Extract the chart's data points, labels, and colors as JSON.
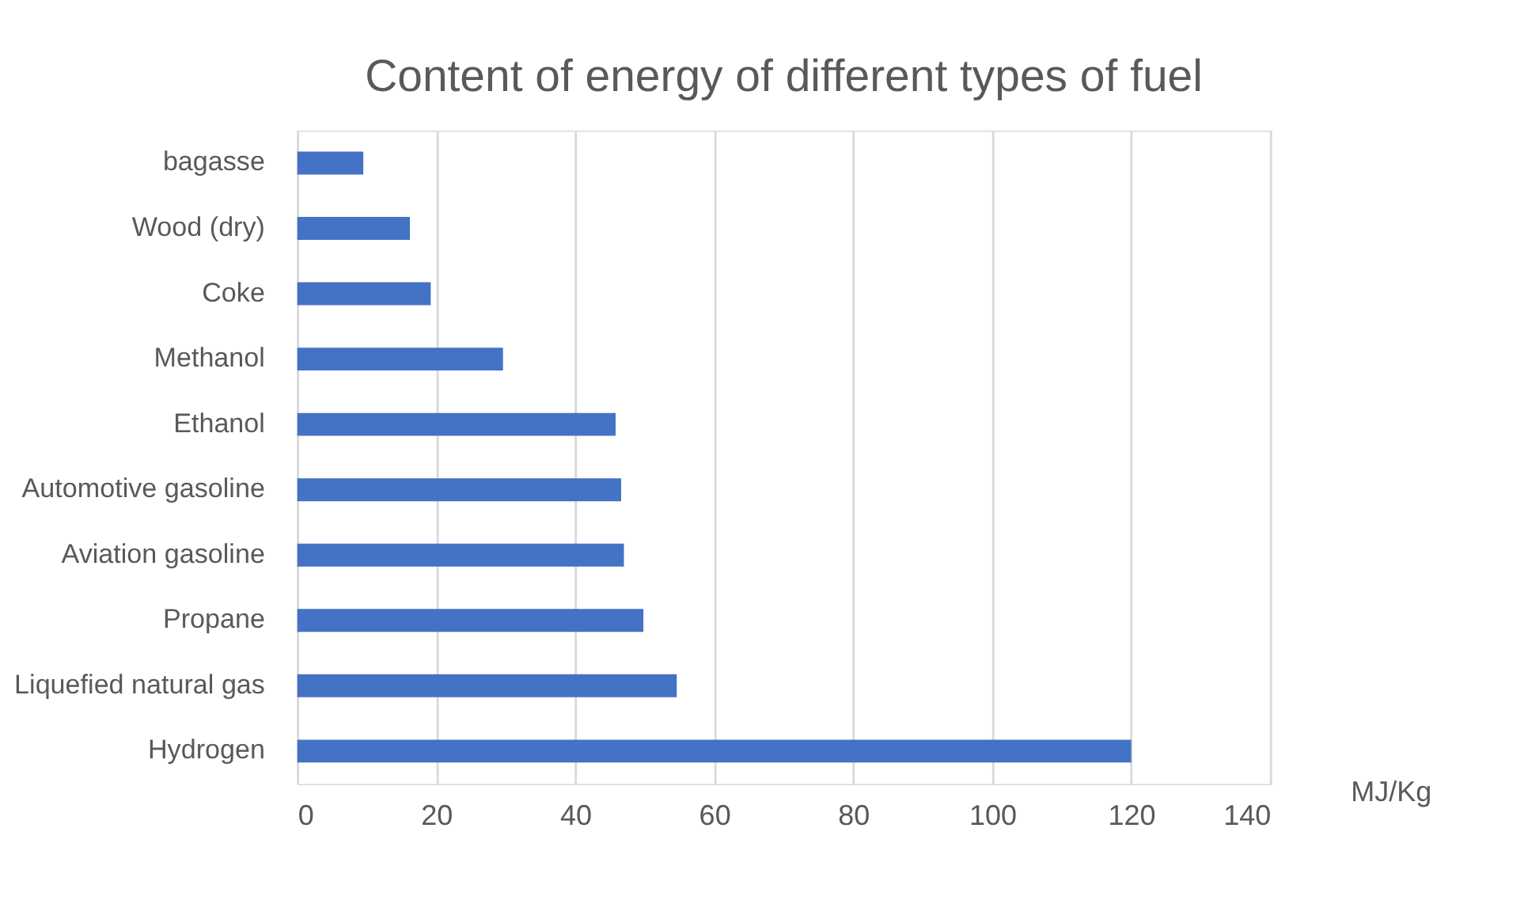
{
  "chart_data": {
    "type": "bar",
    "orientation": "horizontal",
    "title": "Content of energy of different types of fuel",
    "xlabel": "MJ/Kg",
    "categories": [
      "bagasse",
      "Wood (dry)",
      "Coke",
      "Methanol",
      "Ethanol",
      "Automotive gasoline",
      "Aviation gasoline",
      "Propane",
      "Liquefied natural gas",
      "Hydrogen"
    ],
    "values": [
      9.5,
      16.2,
      19.2,
      29.6,
      45.8,
      46.6,
      47.0,
      49.8,
      54.6,
      120
    ],
    "color": "#4472c4",
    "xlim": [
      0,
      140
    ],
    "xticks": [
      0,
      20,
      40,
      60,
      80,
      100,
      120,
      140
    ],
    "grid": "x"
  }
}
